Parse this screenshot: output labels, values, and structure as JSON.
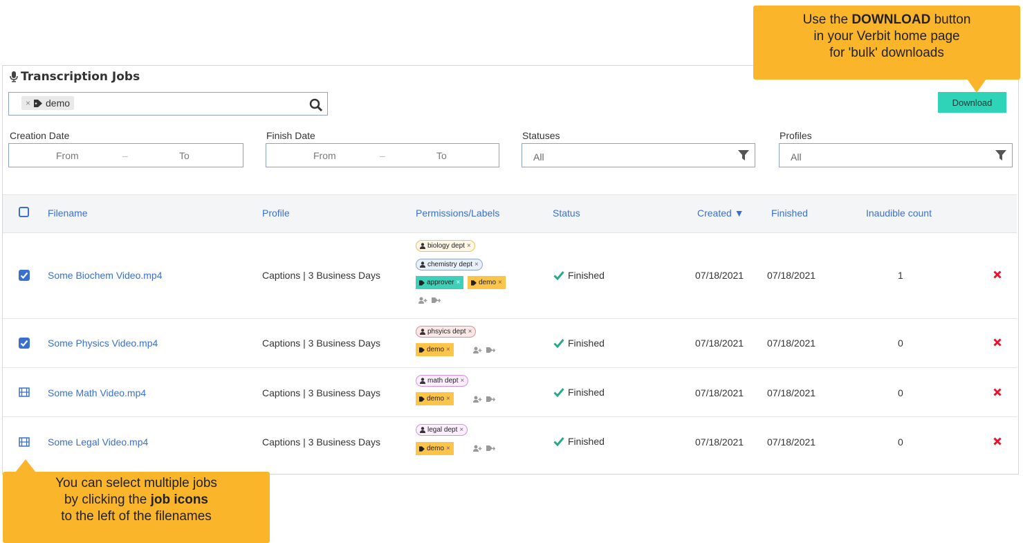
{
  "header": {
    "title": "Transcription Jobs"
  },
  "search": {
    "chip_remove": "×",
    "chip_label": "demo"
  },
  "toolbar": {
    "download_label": "Download"
  },
  "filters": {
    "creation": {
      "label": "Creation Date",
      "from": "From",
      "dash": "–",
      "to": "To"
    },
    "finish": {
      "label": "Finish Date",
      "from": "From",
      "dash": "–",
      "to": "To"
    },
    "statuses": {
      "label": "Statuses",
      "value": "All"
    },
    "profiles": {
      "label": "Profiles",
      "value": "All"
    }
  },
  "table": {
    "columns": [
      "Filename",
      "Profile",
      "Permissions/Labels",
      "Status",
      "Created ▼",
      "Finished",
      "Inaudible count"
    ],
    "rows": [
      {
        "filename": "Some Biochem Video.mp4",
        "profile": "Captions | 3 Business Days",
        "status": "Finished",
        "created": "07/18/2021",
        "finished": "07/18/2021",
        "inaudible": "1",
        "selected": true,
        "tags": [
          "biology dept",
          "chemistry dept",
          "approver",
          "demo"
        ]
      },
      {
        "filename": "Some Physics Video.mp4",
        "profile": "Captions | 3 Business Days",
        "status": "Finished",
        "created": "07/18/2021",
        "finished": "07/18/2021",
        "inaudible": "0",
        "selected": true,
        "tags": [
          "phsyics dept",
          "demo"
        ]
      },
      {
        "filename": "Some Math Video.mp4",
        "profile": "Captions | 3 Business Days",
        "status": "Finished",
        "created": "07/18/2021",
        "finished": "07/18/2021",
        "inaudible": "0",
        "selected": false,
        "tags": [
          "math dept",
          "demo"
        ]
      },
      {
        "filename": "Some Legal Video.mp4",
        "profile": "Captions | 3 Business Days",
        "status": "Finished",
        "created": "07/18/2021",
        "finished": "07/18/2021",
        "inaudible": "0",
        "selected": false,
        "tags": [
          "legal dept",
          "demo"
        ]
      }
    ],
    "tag_remove": "×"
  },
  "callouts": {
    "download": {
      "pre": "Use the ",
      "bold": "DOWNLOAD",
      "post": " button",
      "line2": "in your Verbit home page",
      "line3": "for 'bulk' downloads"
    },
    "select": {
      "line1": "You can select multiple jobs",
      "pre": "by clicking the ",
      "bold": "job icons",
      "line3": "to the left of the filenames"
    }
  },
  "colors": {
    "accent": "#3a6fd1",
    "download_button": "#2ed3b8",
    "callout": "#fbb52a",
    "delete": "#e8112d",
    "check": "#27a888"
  }
}
